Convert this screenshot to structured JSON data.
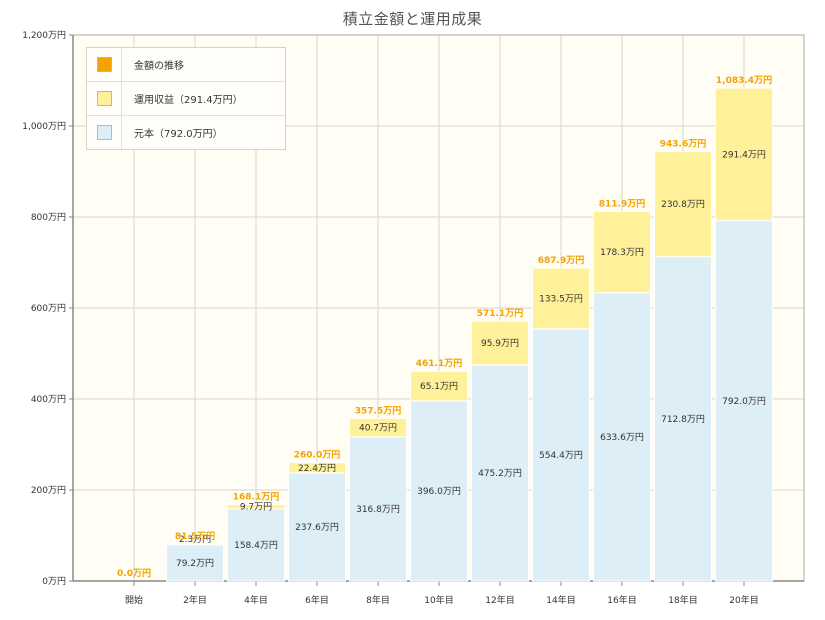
{
  "title": "積立金額と運用成果",
  "legend": [
    {
      "label": "金額の推移",
      "color": "#f4a300"
    },
    {
      "label": "運用収益（291.4万円）",
      "color": "#fff19a"
    },
    {
      "label": "元本（792.0万円）",
      "color": "#ddeef6"
    }
  ],
  "chart_data": {
    "type": "bar",
    "categories": [
      "開始",
      "2年目",
      "4年目",
      "6年目",
      "8年目",
      "10年目",
      "12年目",
      "14年目",
      "16年目",
      "18年目",
      "20年目"
    ],
    "series": [
      {
        "name": "元本（792.0万円）",
        "values": [
          0,
          79.2,
          158.4,
          237.6,
          316.8,
          396.0,
          475.2,
          554.4,
          633.6,
          712.8,
          792.0
        ],
        "color": "#ddeef6"
      },
      {
        "name": "運用収益（291.4万円）",
        "values": [
          0,
          2.3,
          9.7,
          22.4,
          40.7,
          65.1,
          95.9,
          133.5,
          178.3,
          230.8,
          291.4
        ],
        "color": "#fff19a"
      }
    ],
    "totals": [
      0.0,
      81.5,
      168.1,
      260.0,
      357.5,
      461.1,
      571.1,
      687.9,
      811.9,
      943.6,
      1083.4
    ],
    "principal_labels": [
      "",
      "79.2万円",
      "158.4万円",
      "237.6万円",
      "316.8万円",
      "396.0万円",
      "475.2万円",
      "554.4万円",
      "633.6万円",
      "712.8万円",
      "792.0万円"
    ],
    "return_labels": [
      "",
      "2.3万円",
      "9.7万円",
      "22.4万円",
      "40.7万円",
      "65.1万円",
      "95.9万円",
      "133.5万円",
      "178.3万円",
      "230.8万円",
      "291.4万円"
    ],
    "total_labels": [
      "0.0万円",
      "81.5万円",
      "168.1万円",
      "260.0万円",
      "357.5万円",
      "461.1万円",
      "571.1万円",
      "687.9万円",
      "811.9万円",
      "943.6万円",
      "1,083.4万円"
    ],
    "y_ticks": [
      "0万円",
      "200万円",
      "400万円",
      "600万円",
      "800万円",
      "1,000万円",
      "1,200万円"
    ],
    "ylim": [
      0,
      1200
    ],
    "grid": true,
    "legend_position": "top-left"
  }
}
